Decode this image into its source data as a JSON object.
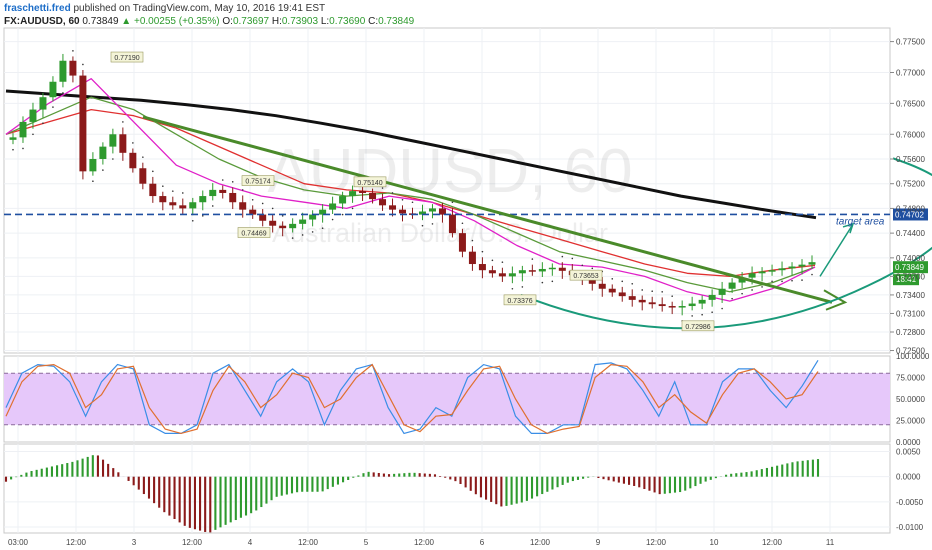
{
  "header": {
    "author": "fraschetti.fred",
    "published": "published on TradingView.com, May 10, 2016 19:41 EST",
    "symbol": "FX:AUDUSD, 60",
    "price": "0.73849",
    "change": "▲ +0.00255 (+0.35%)",
    "o_label": "O:",
    "o": "0.73697",
    "h_label": "H:",
    "h": "0.73903",
    "l_label": "L:",
    "l": "0.73690",
    "c_label": "C:",
    "c": "0.73849"
  },
  "watermark": {
    "symbol": "AUDUSD, 60",
    "name": "Australian Dollar/U.S. Dollar"
  },
  "colors": {
    "up": "#2e9a2e",
    "down": "#8b1a1a",
    "ema_red": "#e03030",
    "ema_magenta": "#e020c8",
    "ema_green": "#5a9a3a",
    "ma_black": "#111111",
    "trend": "#4a8a2a",
    "curve": "#1a9a7a",
    "target_line": "#1f4fa0",
    "stoch_band": "#e6c8fa",
    "stoch_blue": "#3a8ee6",
    "stoch_orange": "#e07030"
  },
  "chart_data": [
    {
      "type": "candlestick",
      "panel": "price",
      "y_axis_ticks": [
        "0.77500",
        "0.77000",
        "0.76500",
        "0.76000",
        "0.75600",
        "0.75200",
        "0.74800",
        "0.74400",
        "0.74000",
        "0.73700",
        "0.73400",
        "0.73100",
        "0.72800",
        "0.72500"
      ],
      "ylim": [
        0.7246,
        0.7772
      ],
      "x_axis_ticks": [
        "03:00",
        "12:00",
        "3",
        "12:00",
        "4",
        "12:00",
        "5",
        "12:00",
        "6",
        "12:00",
        "9",
        "12:00",
        "10",
        "12:00",
        "11"
      ],
      "close_path": [
        0.7595,
        0.762,
        0.764,
        0.766,
        0.7685,
        0.7719,
        0.7695,
        0.754,
        0.756,
        0.758,
        0.76,
        0.757,
        0.7545,
        0.752,
        0.75,
        0.749,
        0.7485,
        0.748,
        0.749,
        0.75,
        0.751,
        0.7505,
        0.749,
        0.7478,
        0.747,
        0.746,
        0.7452,
        0.7448,
        0.7455,
        0.7462,
        0.747,
        0.7478,
        0.7488,
        0.75,
        0.7508,
        0.7505,
        0.7495,
        0.7485,
        0.7478,
        0.7472,
        0.747,
        0.7475,
        0.748,
        0.747,
        0.744,
        0.741,
        0.739,
        0.738,
        0.7375,
        0.737,
        0.7375,
        0.738,
        0.7378,
        0.7382,
        0.7384,
        0.7379,
        0.7372,
        0.7365,
        0.7358,
        0.735,
        0.7344,
        0.7338,
        0.7332,
        0.7328,
        0.7325,
        0.7322,
        0.732,
        0.7322,
        0.7326,
        0.7332,
        0.734,
        0.735,
        0.736,
        0.7368,
        0.7375,
        0.7378,
        0.738,
        0.7383,
        0.7386,
        0.7389,
        0.7393
      ],
      "series": [
        {
          "name": "",
          "role": "ma200",
          "values": [
            0.767,
            0.7665,
            0.766,
            0.7655,
            0.7648,
            0.764,
            0.763,
            0.7618,
            0.7605,
            0.759,
            0.7575,
            0.756,
            0.7545,
            0.753,
            0.7515,
            0.75,
            0.7488,
            0.7476,
            0.7465
          ]
        },
        {
          "name": "",
          "role": "ema_red",
          "values": [
            0.76,
            0.762,
            0.764,
            0.763,
            0.761,
            0.758,
            0.755,
            0.752,
            0.751,
            0.7505,
            0.749,
            0.747,
            0.745,
            0.743,
            0.741,
            0.739,
            0.7375,
            0.737,
            0.738,
            0.7388
          ]
        },
        {
          "name": "",
          "role": "ema_green",
          "values": [
            0.76,
            0.763,
            0.766,
            0.764,
            0.76,
            0.756,
            0.753,
            0.751,
            0.75,
            0.7505,
            0.7495,
            0.747,
            0.744,
            0.741,
            0.7395,
            0.738,
            0.736,
            0.7345,
            0.736,
            0.7385
          ]
        },
        {
          "name": "",
          "role": "ema_magenta",
          "values": [
            0.76,
            0.765,
            0.769,
            0.762,
            0.755,
            0.752,
            0.75,
            0.749,
            0.748,
            0.75,
            0.749,
            0.746,
            0.742,
            0.739,
            0.7385,
            0.737,
            0.7345,
            0.733,
            0.735,
            0.7385
          ]
        }
      ],
      "annotations": [
        {
          "label": "0.77190",
          "value": 0.7719
        },
        {
          "label": "0.75174",
          "value": 0.75174
        },
        {
          "label": "0.74469",
          "value": 0.74469
        },
        {
          "label": "0.75140",
          "value": 0.7514
        },
        {
          "label": "0.73653",
          "value": 0.73653
        },
        {
          "label": "0.73376",
          "value": 0.73376
        },
        {
          "label": "0.72986",
          "value": 0.72986
        },
        {
          "label": "0.74702",
          "value": 0.74702,
          "kind": "horizontal-line"
        },
        {
          "label": "target area",
          "kind": "text"
        }
      ],
      "price_marker": {
        "label": "0.73849",
        "value": 0.73849
      },
      "timer_marker": {
        "label": "18:41"
      }
    },
    {
      "type": "line",
      "panel": "stochastic",
      "y_axis_ticks": [
        "100.0000",
        "75.0000",
        "50.0000",
        "25.0000",
        "0.0000"
      ],
      "ylim": [
        0,
        100
      ],
      "band": [
        20,
        80
      ],
      "series": [
        {
          "name": "",
          "role": "k",
          "values": [
            40,
            80,
            90,
            88,
            70,
            30,
            70,
            90,
            85,
            20,
            10,
            10,
            20,
            80,
            90,
            60,
            30,
            70,
            85,
            70,
            20,
            60,
            85,
            90,
            40,
            10,
            15,
            40,
            30,
            75,
            90,
            85,
            30,
            10,
            10,
            20,
            20,
            90,
            92,
            85,
            60,
            30,
            70,
            20,
            20,
            70,
            85,
            85,
            60,
            40,
            65,
            95
          ]
        },
        {
          "name": "",
          "role": "d",
          "values": [
            30,
            70,
            88,
            90,
            80,
            40,
            55,
            85,
            88,
            40,
            15,
            10,
            15,
            60,
            88,
            70,
            40,
            55,
            80,
            75,
            40,
            50,
            75,
            90,
            55,
            20,
            12,
            30,
            32,
            60,
            85,
            88,
            50,
            20,
            10,
            15,
            18,
            75,
            90,
            88,
            70,
            40,
            55,
            35,
            22,
            55,
            80,
            85,
            70,
            50,
            55,
            82
          ]
        }
      ]
    },
    {
      "type": "histogram",
      "panel": "macd",
      "y_axis_ticks": [
        "0.0050",
        "0.0000",
        "-0.0050",
        "-0.0100"
      ],
      "ylim": [
        -0.0112,
        0.0065
      ],
      "values": [
        -0.001,
        0.001,
        0.002,
        0.003,
        0.0045,
        0.0008,
        -0.003,
        -0.007,
        -0.01,
        -0.0112,
        -0.009,
        -0.007,
        -0.004,
        -0.003,
        -0.003,
        -0.001,
        0.001,
        0.0005,
        0.0008,
        0.0005,
        -0.001,
        -0.004,
        -0.006,
        -0.005,
        -0.003,
        -0.001,
        0.0,
        -0.001,
        -0.002,
        -0.0035,
        -0.003,
        -0.001,
        0.0005,
        0.001,
        0.002,
        0.003,
        0.0035
      ]
    }
  ]
}
